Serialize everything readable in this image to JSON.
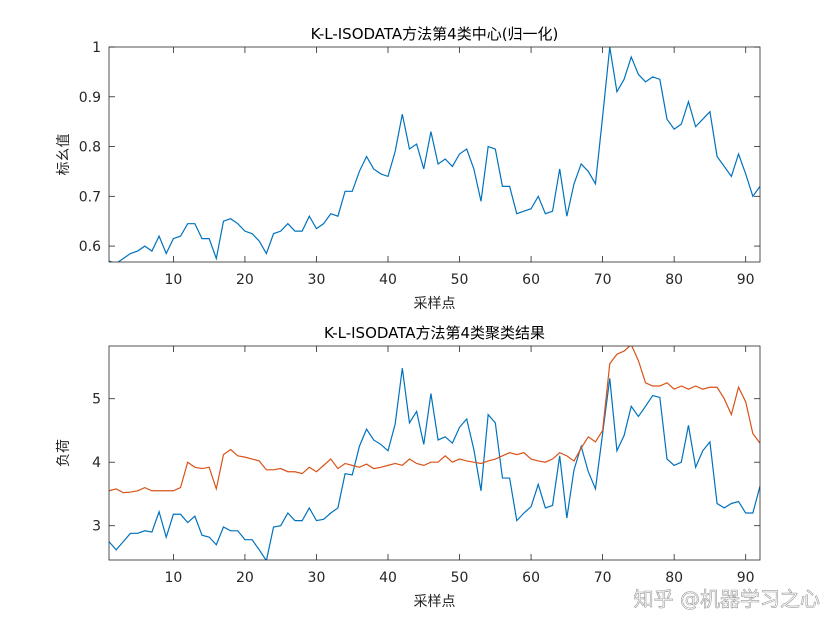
{
  "chart_data": [
    {
      "type": "line",
      "title": "K-L-ISODATA方法第4类中心(归一化)",
      "xlabel": "采样点",
      "ylabel": "标幺值",
      "x": [
        1,
        2,
        3,
        4,
        5,
        6,
        7,
        8,
        9,
        10,
        11,
        12,
        13,
        14,
        15,
        16,
        17,
        18,
        19,
        20,
        21,
        22,
        23,
        24,
        25,
        26,
        27,
        28,
        29,
        30,
        31,
        32,
        33,
        34,
        35,
        36,
        37,
        38,
        39,
        40,
        41,
        42,
        43,
        44,
        45,
        46,
        47,
        48,
        49,
        50,
        51,
        52,
        53,
        54,
        55,
        56,
        57,
        58,
        59,
        60,
        61,
        62,
        63,
        64,
        65,
        66,
        67,
        68,
        69,
        70,
        71,
        72,
        73,
        74,
        75,
        76,
        77,
        78,
        79,
        80,
        81,
        82,
        83,
        84,
        85,
        86,
        87,
        88,
        89,
        90,
        91,
        92
      ],
      "series": [
        {
          "color": "#0072bd",
          "values": [
            0.57,
            0.565,
            0.575,
            0.585,
            0.59,
            0.6,
            0.59,
            0.62,
            0.585,
            0.615,
            0.62,
            0.645,
            0.645,
            0.615,
            0.615,
            0.575,
            0.65,
            0.655,
            0.645,
            0.63,
            0.625,
            0.61,
            0.585,
            0.625,
            0.63,
            0.645,
            0.63,
            0.63,
            0.66,
            0.635,
            0.645,
            0.665,
            0.66,
            0.71,
            0.71,
            0.75,
            0.78,
            0.755,
            0.745,
            0.74,
            0.79,
            0.865,
            0.795,
            0.805,
            0.755,
            0.83,
            0.765,
            0.775,
            0.76,
            0.785,
            0.795,
            0.755,
            0.69,
            0.8,
            0.795,
            0.72,
            0.72,
            0.665,
            0.67,
            0.675,
            0.7,
            0.665,
            0.67,
            0.755,
            0.66,
            0.725,
            0.765,
            0.75,
            0.725,
            0.86,
            1.0,
            0.91,
            0.935,
            0.98,
            0.945,
            0.93,
            0.94,
            0.935,
            0.855,
            0.835,
            0.845,
            0.89,
            0.84,
            0.855,
            0.87,
            0.78,
            0.76,
            0.74,
            0.785,
            0.745,
            0.7,
            0.72
          ]
        }
      ],
      "xlim": [
        1,
        92
      ],
      "xticks": [
        10,
        20,
        30,
        40,
        50,
        60,
        70,
        80,
        90
      ],
      "ylim": [
        0.568,
        1
      ],
      "yticks": [
        0.6,
        0.7,
        0.8,
        0.9,
        1
      ]
    },
    {
      "type": "line",
      "title": "K-L-ISODATA方法第4类聚类结果",
      "xlabel": "采样点",
      "ylabel": "负荷",
      "x": [
        1,
        2,
        3,
        4,
        5,
        6,
        7,
        8,
        9,
        10,
        11,
        12,
        13,
        14,
        15,
        16,
        17,
        18,
        19,
        20,
        21,
        22,
        23,
        24,
        25,
        26,
        27,
        28,
        29,
        30,
        31,
        32,
        33,
        34,
        35,
        36,
        37,
        38,
        39,
        40,
        41,
        42,
        43,
        44,
        45,
        46,
        47,
        48,
        49,
        50,
        51,
        52,
        53,
        54,
        55,
        56,
        57,
        58,
        59,
        60,
        61,
        62,
        63,
        64,
        65,
        66,
        67,
        68,
        69,
        70,
        71,
        72,
        73,
        74,
        75,
        76,
        77,
        78,
        79,
        80,
        81,
        82,
        83,
        84,
        85,
        86,
        87,
        88,
        89,
        90,
        91,
        92
      ],
      "series": [
        {
          "color": "#0072bd",
          "values": [
            2.75,
            2.62,
            2.75,
            2.88,
            2.88,
            2.92,
            2.9,
            3.22,
            2.82,
            3.18,
            3.18,
            3.05,
            3.15,
            2.85,
            2.82,
            2.7,
            2.98,
            2.92,
            2.92,
            2.78,
            2.78,
            2.62,
            2.45,
            2.98,
            3.0,
            3.2,
            3.08,
            3.08,
            3.28,
            3.08,
            3.1,
            3.2,
            3.28,
            3.82,
            3.8,
            4.25,
            4.52,
            4.35,
            4.28,
            4.18,
            4.6,
            5.48,
            4.62,
            4.8,
            4.28,
            5.08,
            4.35,
            4.4,
            4.3,
            4.55,
            4.68,
            4.2,
            3.55,
            4.75,
            4.62,
            3.75,
            3.75,
            3.08,
            3.2,
            3.3,
            3.65,
            3.28,
            3.32,
            4.1,
            3.12,
            3.88,
            4.25,
            3.85,
            3.58,
            4.45,
            5.32,
            4.18,
            4.42,
            4.88,
            4.72,
            4.88,
            5.05,
            5.02,
            4.05,
            3.95,
            4.0,
            4.58,
            3.92,
            4.18,
            4.32,
            3.35,
            3.28,
            3.35,
            3.38,
            3.2,
            3.2,
            3.62
          ]
        },
        {
          "color": "#d95319",
          "values": [
            3.55,
            3.58,
            3.52,
            3.53,
            3.55,
            3.6,
            3.55,
            3.55,
            3.55,
            3.55,
            3.6,
            4.0,
            3.92,
            3.9,
            3.92,
            3.58,
            4.12,
            4.2,
            4.1,
            4.08,
            4.05,
            4.02,
            3.88,
            3.88,
            3.9,
            3.85,
            3.85,
            3.82,
            3.92,
            3.85,
            3.95,
            4.05,
            3.9,
            3.98,
            3.95,
            3.92,
            3.97,
            3.9,
            3.92,
            3.95,
            3.98,
            3.95,
            4.05,
            3.98,
            3.95,
            4.0,
            4.0,
            4.1,
            4.0,
            4.05,
            4.02,
            4.0,
            3.98,
            4.02,
            4.05,
            4.1,
            4.15,
            4.12,
            4.15,
            4.05,
            4.02,
            4.0,
            4.05,
            4.15,
            4.1,
            4.02,
            4.22,
            4.4,
            4.32,
            4.5,
            5.55,
            5.7,
            5.75,
            5.85,
            5.6,
            5.25,
            5.2,
            5.2,
            5.25,
            5.15,
            5.2,
            5.15,
            5.2,
            5.15,
            5.18,
            5.18,
            5.0,
            4.75,
            5.18,
            4.95,
            4.45,
            4.3
          ]
        }
      ],
      "xlim": [
        1,
        92
      ],
      "xticks": [
        10,
        20,
        30,
        40,
        50,
        60,
        70,
        80,
        90
      ],
      "ylim": [
        2.46,
        5.83
      ],
      "yticks": [
        3,
        4,
        5
      ]
    }
  ],
  "watermark": "知乎 @机器学习之心"
}
